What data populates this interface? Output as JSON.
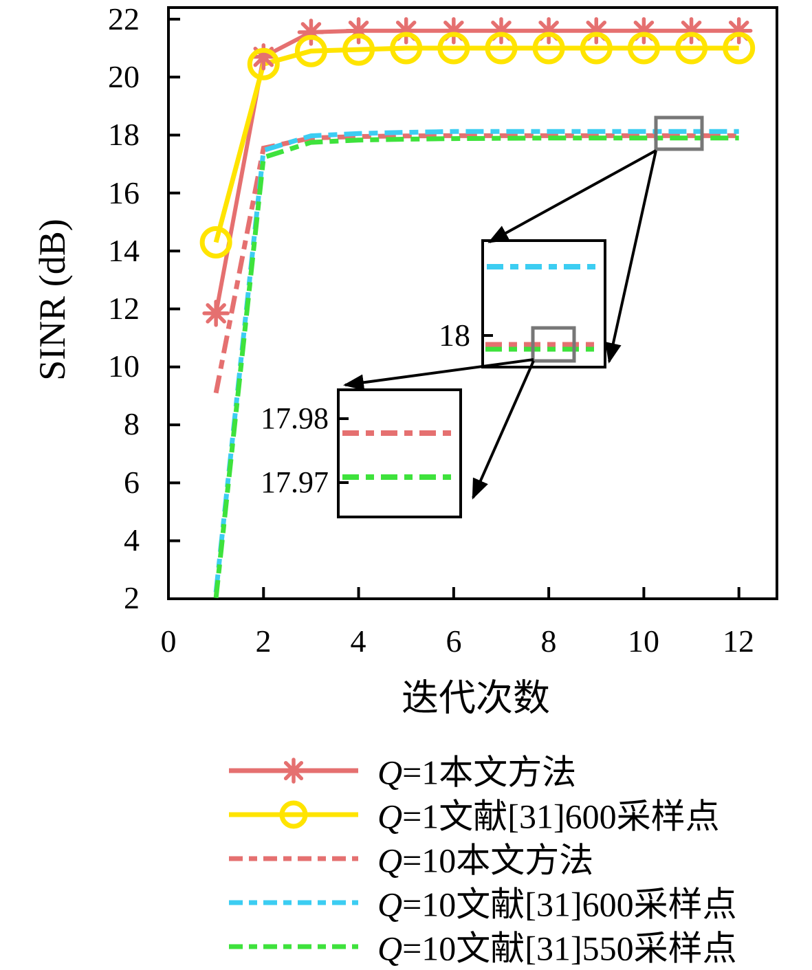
{
  "figure": {
    "ylabel": "SINR (dB)",
    "xlabel": "迭代次数",
    "y_tick_labels": [
      "22",
      "20",
      "18",
      "16",
      "14",
      "12",
      "10",
      "8",
      "6",
      "4",
      "2"
    ],
    "x_tick_labels": [
      "0",
      "2",
      "4",
      "6",
      "8",
      "10",
      "12"
    ]
  },
  "insets": {
    "upper": {
      "tick_label": "18",
      "depicts": "zoom of curves near 18 dB",
      "cyan_value": 18.1,
      "red_value": 17.978,
      "green_value": 17.971
    },
    "lower": {
      "tick_label_top": "17.98",
      "tick_label_bottom": "17.97",
      "depicts": "zoom of red vs green curves",
      "red_value": 17.978,
      "green_value": 17.971
    }
  },
  "legend": [
    {
      "q": "Q",
      "rest": "=1本文方法"
    },
    {
      "q": "Q",
      "rest": "=1文献[31]600采样点"
    },
    {
      "q": "Q",
      "rest": "=10本文方法"
    },
    {
      "q": "Q",
      "rest": "=10文献[31]600采样点"
    },
    {
      "q": "Q",
      "rest": "=10文献[31]550采样点"
    }
  ],
  "colors": {
    "salmon_red": "#e57070",
    "yellow": "#ffe400",
    "cyan": "#3ccdf2",
    "green": "#3ee23c",
    "gray_box": "#777777",
    "black": "#000000"
  },
  "chart_data": {
    "type": "line",
    "title": "",
    "xlabel": "迭代次数",
    "ylabel": "SINR (dB)",
    "xlim": [
      0,
      12.8
    ],
    "ylim": [
      2,
      22.4
    ],
    "xticks": [
      0,
      2,
      4,
      6,
      8,
      10,
      12
    ],
    "yticks": [
      2,
      4,
      6,
      8,
      10,
      12,
      14,
      16,
      18,
      20,
      22
    ],
    "grid": false,
    "legend_position": "below-plot",
    "x": [
      1,
      2,
      3,
      4,
      5,
      6,
      7,
      8,
      9,
      10,
      11,
      12
    ],
    "series": [
      {
        "name": "Q=1本文方法",
        "color": "#e57070",
        "style": "solid",
        "marker": "asterisk",
        "values": [
          11.85,
          20.7,
          21.55,
          21.6,
          21.6,
          21.6,
          21.6,
          21.6,
          21.6,
          21.6,
          21.6,
          21.6
        ]
      },
      {
        "name": "Q=1文献[31]600采样点",
        "color": "#ffe400",
        "style": "solid",
        "marker": "circle",
        "values": [
          14.3,
          20.45,
          20.9,
          20.95,
          21.0,
          21.0,
          21.0,
          21.0,
          21.0,
          21.0,
          21.0,
          21.0
        ]
      },
      {
        "name": "Q=10本文方法",
        "color": "#e57070",
        "style": "dashdot",
        "marker": "none",
        "values": [
          9.1,
          17.55,
          17.9,
          17.95,
          17.97,
          17.98,
          17.98,
          17.98,
          17.98,
          17.98,
          17.98,
          17.98
        ]
      },
      {
        "name": "Q=10文献[31]600采样点",
        "color": "#3ccdf2",
        "style": "dashdot",
        "marker": "none",
        "values": [
          2.2,
          17.45,
          17.95,
          18.03,
          18.07,
          18.1,
          18.1,
          18.1,
          18.1,
          18.1,
          18.1,
          18.1
        ]
      },
      {
        "name": "Q=10文献[31]550采样点",
        "color": "#3ee23c",
        "style": "dashdot",
        "marker": "none",
        "values": [
          2.1,
          17.3,
          17.82,
          17.9,
          17.93,
          17.95,
          17.96,
          17.97,
          17.97,
          17.97,
          17.97,
          17.97
        ]
      }
    ]
  }
}
